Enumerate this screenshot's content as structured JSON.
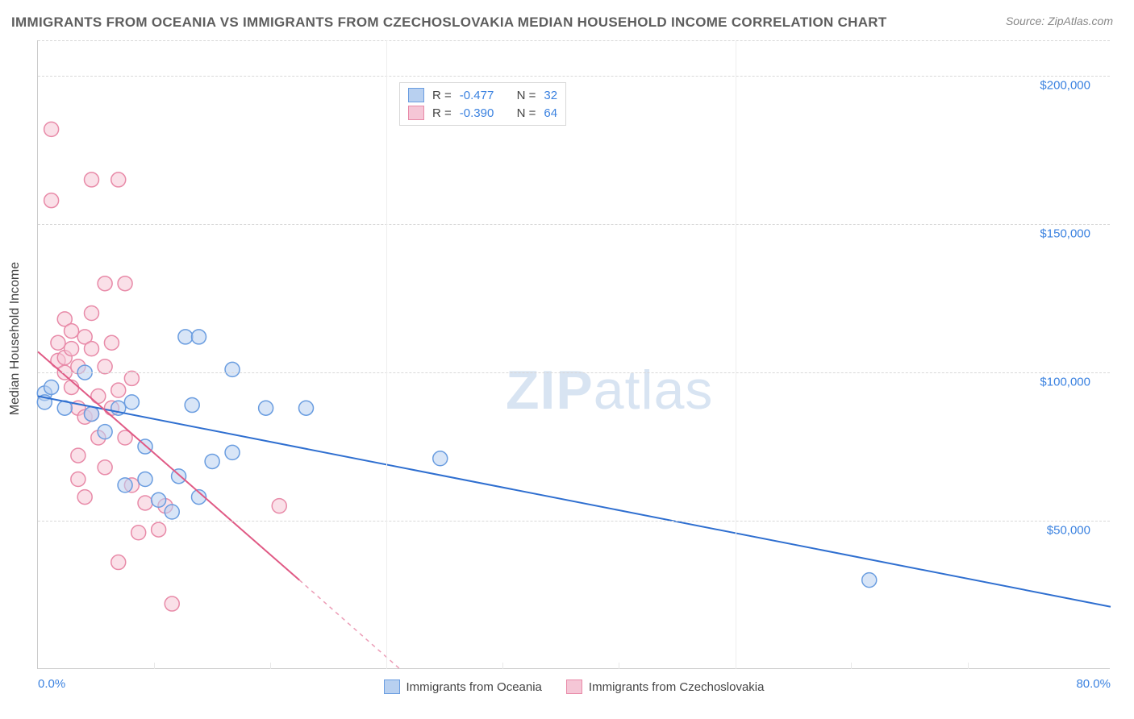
{
  "title": "IMMIGRANTS FROM OCEANIA VS IMMIGRANTS FROM CZECHOSLOVAKIA MEDIAN HOUSEHOLD INCOME CORRELATION CHART",
  "source": "Source: ZipAtlas.com",
  "watermark_a": "ZIP",
  "watermark_b": "atlas",
  "y_axis_label": "Median Household Income",
  "colors": {
    "series_a_fill": "#b8d0f0",
    "series_a_stroke": "#6a9de0",
    "series_a_line": "#2f6fd0",
    "series_b_fill": "#f5c6d6",
    "series_b_stroke": "#e88aa8",
    "series_b_line": "#e05a85",
    "axis_text": "#3b82e0",
    "grid": "#d8d8d8",
    "title_color": "#5e5e5e",
    "source_color": "#888888"
  },
  "chart": {
    "type": "scatter",
    "xlim": [
      0,
      80
    ],
    "ylim": [
      0,
      212000
    ],
    "x_ticks": [
      0,
      80
    ],
    "x_tick_labels": [
      "0.0%",
      "80.0%"
    ],
    "x_minor_grid": [
      8.66,
      17.33,
      26,
      34.66,
      43.33,
      52,
      60.66,
      69.33
    ],
    "y_ticks": [
      50000,
      100000,
      150000,
      200000
    ],
    "y_tick_labels": [
      "$50,000",
      "$100,000",
      "$150,000",
      "$200,000"
    ],
    "marker_radius": 9,
    "marker_opacity": 0.55,
    "line_width": 2,
    "series": [
      {
        "name": "Immigrants from Oceania",
        "R": "-0.477",
        "N": "32",
        "fill": "#b8d0f0",
        "stroke": "#6a9de0",
        "line_color": "#2f6fd0",
        "regression": {
          "x1": 0,
          "y1": 92000,
          "x2": 80,
          "y2": 21000
        },
        "dashed_extension": null,
        "points": [
          [
            0.5,
            93000
          ],
          [
            0.5,
            90000
          ],
          [
            1,
            95000
          ],
          [
            2,
            88000
          ],
          [
            3.5,
            100000
          ],
          [
            4,
            86000
          ],
          [
            5,
            80000
          ],
          [
            6,
            88000
          ],
          [
            6.5,
            62000
          ],
          [
            7,
            90000
          ],
          [
            8,
            64000
          ],
          [
            8,
            75000
          ],
          [
            9,
            57000
          ],
          [
            10,
            53000
          ],
          [
            10.5,
            65000
          ],
          [
            11,
            112000
          ],
          [
            11.5,
            89000
          ],
          [
            12,
            112000
          ],
          [
            12,
            58000
          ],
          [
            13,
            70000
          ],
          [
            14.5,
            101000
          ],
          [
            14.5,
            73000
          ],
          [
            17,
            88000
          ],
          [
            20,
            88000
          ],
          [
            30,
            71000
          ],
          [
            62,
            30000
          ]
        ]
      },
      {
        "name": "Immigrants from Czechoslovakia",
        "R": "-0.390",
        "N": "64",
        "fill": "#f5c6d6",
        "stroke": "#e88aa8",
        "line_color": "#e05a85",
        "regression": {
          "x1": 0,
          "y1": 107000,
          "x2": 19.5,
          "y2": 30000
        },
        "dashed_extension": {
          "x1": 19.5,
          "y1": 30000,
          "x2": 27,
          "y2": 0
        },
        "points": [
          [
            1,
            182000
          ],
          [
            1,
            158000
          ],
          [
            1.5,
            104000
          ],
          [
            1.5,
            110000
          ],
          [
            2,
            105000
          ],
          [
            2,
            100000
          ],
          [
            2,
            118000
          ],
          [
            2.5,
            95000
          ],
          [
            2.5,
            108000
          ],
          [
            2.5,
            114000
          ],
          [
            3,
            88000
          ],
          [
            3,
            102000
          ],
          [
            3,
            64000
          ],
          [
            3,
            72000
          ],
          [
            3.5,
            85000
          ],
          [
            3.5,
            112000
          ],
          [
            3.5,
            58000
          ],
          [
            4,
            165000
          ],
          [
            4,
            120000
          ],
          [
            4,
            108000
          ],
          [
            4,
            86000
          ],
          [
            4.5,
            78000
          ],
          [
            4.5,
            92000
          ],
          [
            5,
            102000
          ],
          [
            5,
            130000
          ],
          [
            5,
            68000
          ],
          [
            5.5,
            88000
          ],
          [
            5.5,
            110000
          ],
          [
            6,
            165000
          ],
          [
            6,
            94000
          ],
          [
            6,
            36000
          ],
          [
            6.5,
            130000
          ],
          [
            6.5,
            78000
          ],
          [
            7,
            98000
          ],
          [
            7,
            62000
          ],
          [
            7.5,
            46000
          ],
          [
            8,
            56000
          ],
          [
            9,
            47000
          ],
          [
            9.5,
            55000
          ],
          [
            10,
            22000
          ],
          [
            18,
            55000
          ]
        ]
      }
    ]
  },
  "legend_top": {
    "R_label": "R =",
    "N_label": "N ="
  },
  "legend_bottom": {
    "series_a": "Immigrants from Oceania",
    "series_b": "Immigrants from Czechoslovakia"
  }
}
